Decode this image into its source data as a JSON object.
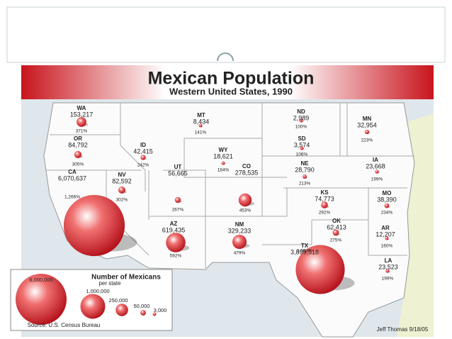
{
  "map": {
    "title": "Mexican Population",
    "subtitle": "Western United States, 1990",
    "states": [
      {
        "name": "WA",
        "population": {
          "value": 153217,
          "label": "153,217"
        },
        "growth": "371%"
      },
      {
        "name": "OR",
        "population": {
          "value": 84792,
          "label": "84,792"
        },
        "growth": "305%"
      },
      {
        "name": "ID",
        "population": {
          "value": 42415,
          "label": "42,415"
        },
        "growth": "242%"
      },
      {
        "name": "MT",
        "population": {
          "value": 8434,
          "label": "8,434"
        },
        "growth": "141%"
      },
      {
        "name": "ND",
        "population": {
          "value": 2989,
          "label": "2,989"
        },
        "growth": "100%"
      },
      {
        "name": "SD",
        "population": {
          "value": 3574,
          "label": "3,574"
        },
        "growth": "106%"
      },
      {
        "name": "MN",
        "population": {
          "value": 32954,
          "label": "32,954"
        },
        "growth": "223%"
      },
      {
        "name": "WY",
        "population": {
          "value": 18621,
          "label": "18,621"
        },
        "growth": "184%"
      },
      {
        "name": "NE",
        "population": {
          "value": 28790,
          "label": "28,790"
        },
        "growth": "213%"
      },
      {
        "name": "IA",
        "population": {
          "value": 23668,
          "label": "23,668"
        },
        "growth": "199%"
      },
      {
        "name": "CA",
        "population": {
          "value": 6070637,
          "label": "6,070,637"
        },
        "growth": "1,266%"
      },
      {
        "name": "NV",
        "population": {
          "value": 82592,
          "label": "82,592"
        },
        "growth": "302%"
      },
      {
        "name": "UT",
        "population": {
          "value": 56665,
          "label": "56,665"
        },
        "growth": "267%"
      },
      {
        "name": "CO",
        "population": {
          "value": 278535,
          "label": "278,535"
        },
        "growth": "453%"
      },
      {
        "name": "KS",
        "population": {
          "value": 74773,
          "label": "74,773"
        },
        "growth": "292%"
      },
      {
        "name": "MO",
        "population": {
          "value": 38390,
          "label": "38,390"
        },
        "growth": "234%"
      },
      {
        "name": "AZ",
        "population": {
          "value": 619435,
          "label": "619,435"
        },
        "growth": "592%"
      },
      {
        "name": "NM",
        "population": {
          "value": 329233,
          "label": "329,233"
        },
        "growth": "479%"
      },
      {
        "name": "OK",
        "population": {
          "value": 62413,
          "label": "62,413"
        },
        "growth": "275%"
      },
      {
        "name": "AR",
        "population": {
          "value": 12207,
          "label": "12,207"
        },
        "growth": "160%"
      },
      {
        "name": "TX",
        "population": {
          "value": 3899518,
          "label": "3,899,518"
        },
        "growth": "1,093%"
      },
      {
        "name": "LA",
        "population": {
          "value": 23523,
          "label": "23,523"
        },
        "growth": "199%"
      }
    ],
    "legend": {
      "title": "Number of Mexicans",
      "subtitle": "per state",
      "sizes": [
        {
          "value": 6000000,
          "label": "6,000,000"
        },
        {
          "value": 1000000,
          "label": "1,000,000"
        },
        {
          "value": 250000,
          "label": "250,000"
        },
        {
          "value": 50000,
          "label": "50,000"
        },
        {
          "value": 3000,
          "label": "3,000"
        }
      ]
    },
    "source": "Source: U.S. Census Bureau",
    "credit": "Jeff Thomas   9/18/05"
  }
}
